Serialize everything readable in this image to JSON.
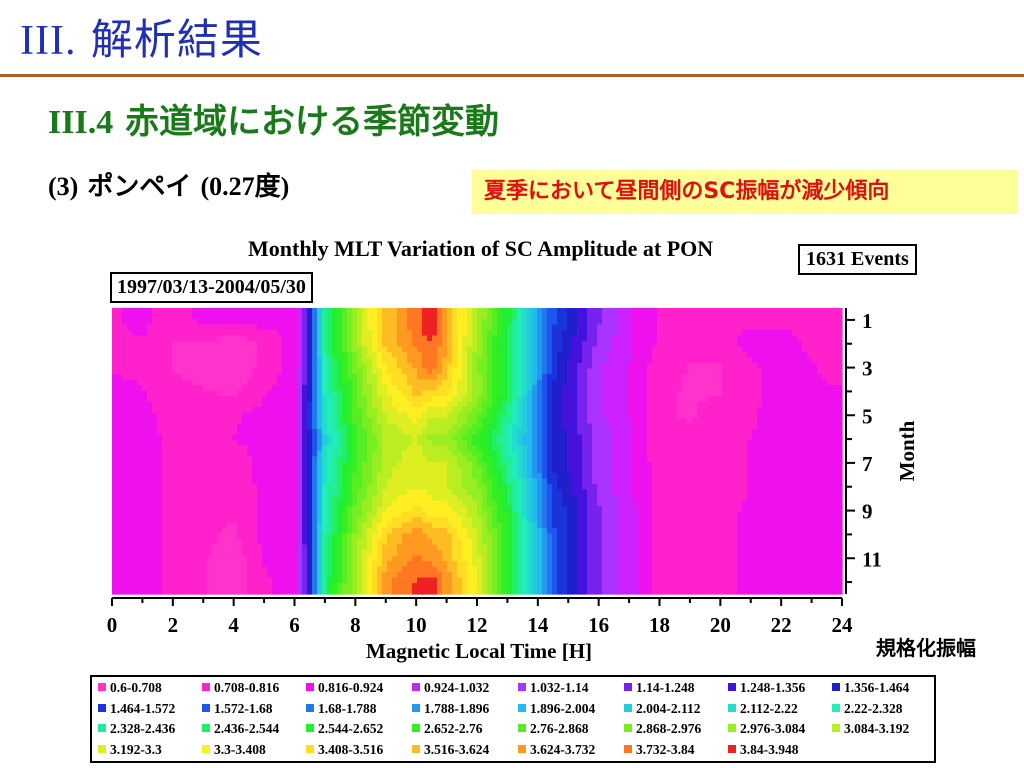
{
  "slide": {
    "title_num": "III.",
    "title_text": "解析結果",
    "section_num": "III.4",
    "section_text": "赤道域における季節変動",
    "subsection_num": "(3)",
    "subsection_name": "ポンペイ",
    "subsection_lat": "(0.27度)",
    "note": "夏季において昼間側のSC振幅が減少傾向",
    "normalized_label": "規格化振幅"
  },
  "chart_data": {
    "type": "heatmap",
    "title": "Monthly MLT Variation of SC Amplitude at PON",
    "period": "1997/03/13-2004/05/30",
    "events": "1631 Events",
    "xlabel": "Magnetic Local Time [H]",
    "ylabel": "Month",
    "xlim": [
      0,
      24
    ],
    "ylim": [
      12,
      1
    ],
    "x_ticks": [
      0,
      2,
      4,
      6,
      8,
      10,
      12,
      14,
      16,
      18,
      20,
      22,
      24
    ],
    "y_ticks": [
      1,
      3,
      5,
      7,
      9,
      11
    ],
    "levels": [
      {
        "label": "0.6-0.708",
        "color": "#ff33cc"
      },
      {
        "label": "0.708-0.816",
        "color": "#ff22cc"
      },
      {
        "label": "0.816-0.924",
        "color": "#ee11ee"
      },
      {
        "label": "0.924-1.032",
        "color": "#cc22ff"
      },
      {
        "label": "1.032-1.14",
        "color": "#aa33ff"
      },
      {
        "label": "1.14-1.248",
        "color": "#7722ee"
      },
      {
        "label": "1.248-1.356",
        "color": "#4411dd"
      },
      {
        "label": "1.356-1.464",
        "color": "#1f1fcc"
      },
      {
        "label": "1.464-1.572",
        "color": "#1a33dd"
      },
      {
        "label": "1.572-1.68",
        "color": "#1e55ee"
      },
      {
        "label": "1.68-1.788",
        "color": "#2277ee"
      },
      {
        "label": "1.788-1.896",
        "color": "#2299ee"
      },
      {
        "label": "1.896-2.004",
        "color": "#22bbee"
      },
      {
        "label": "2.004-2.112",
        "color": "#22ccdd"
      },
      {
        "label": "2.112-2.22",
        "color": "#22ddcc"
      },
      {
        "label": "2.22-2.328",
        "color": "#22eebb"
      },
      {
        "label": "2.328-2.436",
        "color": "#22ee99"
      },
      {
        "label": "2.436-2.544",
        "color": "#22ee66"
      },
      {
        "label": "2.544-2.652",
        "color": "#22ee33"
      },
      {
        "label": "2.652-2.76",
        "color": "#33ee22"
      },
      {
        "label": "2.76-2.868",
        "color": "#55ee22"
      },
      {
        "label": "2.868-2.976",
        "color": "#77ee22"
      },
      {
        "label": "2.976-3.084",
        "color": "#99ee22"
      },
      {
        "label": "3.084-3.192",
        "color": "#bbee22"
      },
      {
        "label": "3.192-3.3",
        "color": "#ddee22"
      },
      {
        "label": "3.3-3.408",
        "color": "#ffee22"
      },
      {
        "label": "3.408-3.516",
        "color": "#ffdd22"
      },
      {
        "label": "3.516-3.624",
        "color": "#ffbb22"
      },
      {
        "label": "3.624-3.732",
        "color": "#ff9922"
      },
      {
        "label": "3.732-3.84",
        "color": "#ff7722"
      },
      {
        "label": "3.84-3.948",
        "color": "#ee2222"
      }
    ],
    "mlt": [
      0,
      1,
      2,
      3,
      4,
      5,
      6,
      6.5,
      7,
      8,
      9,
      10,
      10.5,
      11,
      12,
      13,
      14,
      14.5,
      15,
      16,
      17,
      18,
      19,
      20,
      21,
      22,
      23,
      24
    ],
    "months": [
      1,
      2,
      3,
      4,
      5,
      6,
      7,
      8,
      9,
      10,
      11,
      12
    ],
    "values": [
      [
        0.8,
        0.85,
        0.75,
        0.85,
        0.9,
        0.85,
        0.85,
        1.4,
        2.4,
        3.1,
        3.55,
        3.8,
        3.95,
        3.6,
        3.1,
        2.6,
        1.9,
        1.6,
        1.45,
        1.15,
        0.95,
        0.8,
        0.8,
        0.8,
        0.8,
        0.8,
        0.8,
        0.8
      ],
      [
        0.8,
        0.8,
        0.7,
        0.7,
        0.6,
        0.75,
        0.85,
        1.4,
        2.4,
        3.05,
        3.55,
        3.75,
        3.85,
        3.65,
        3.05,
        2.5,
        1.85,
        1.55,
        1.4,
        1.1,
        0.95,
        0.8,
        0.75,
        0.78,
        0.85,
        0.85,
        0.8,
        0.8
      ],
      [
        0.8,
        0.8,
        0.7,
        0.65,
        0.6,
        0.75,
        0.85,
        1.4,
        2.3,
        2.9,
        3.4,
        3.65,
        3.8,
        3.55,
        3.0,
        2.55,
        1.85,
        1.5,
        1.35,
        1.05,
        0.92,
        0.75,
        0.7,
        0.7,
        0.8,
        0.85,
        0.82,
        0.8
      ],
      [
        0.85,
        0.82,
        0.75,
        0.72,
        0.68,
        0.8,
        0.9,
        1.45,
        2.25,
        2.85,
        3.3,
        3.55,
        3.5,
        3.45,
        3.05,
        2.55,
        1.8,
        1.45,
        1.3,
        1.05,
        0.92,
        0.72,
        0.7,
        0.7,
        0.8,
        0.85,
        0.82,
        0.82
      ],
      [
        0.88,
        0.85,
        0.78,
        0.78,
        0.8,
        0.85,
        0.92,
        1.5,
        2.2,
        2.8,
        3.2,
        3.35,
        3.2,
        3.2,
        2.9,
        2.4,
        1.75,
        1.45,
        1.3,
        1.05,
        0.92,
        0.72,
        0.7,
        0.75,
        0.8,
        0.86,
        0.84,
        0.84
      ],
      [
        0.86,
        0.84,
        0.8,
        0.8,
        0.82,
        0.86,
        0.92,
        1.45,
        2.1,
        2.7,
        3.1,
        3.2,
        3.05,
        3.05,
        2.7,
        2.3,
        1.75,
        1.45,
        1.35,
        1.1,
        0.95,
        0.75,
        0.72,
        0.75,
        0.82,
        0.86,
        0.85,
        0.85
      ],
      [
        0.86,
        0.84,
        0.8,
        0.78,
        0.74,
        0.86,
        0.92,
        1.45,
        2.2,
        2.75,
        3.15,
        3.25,
        3.2,
        3.2,
        2.9,
        2.4,
        1.8,
        1.45,
        1.35,
        1.1,
        0.95,
        0.75,
        0.72,
        0.75,
        0.82,
        0.86,
        0.85,
        0.85
      ],
      [
        0.86,
        0.84,
        0.8,
        0.76,
        0.72,
        0.86,
        0.9,
        1.45,
        2.25,
        2.8,
        3.2,
        3.3,
        3.25,
        3.2,
        3.0,
        2.5,
        1.85,
        1.5,
        1.4,
        1.1,
        0.95,
        0.76,
        0.74,
        0.75,
        0.82,
        0.86,
        0.85,
        0.85
      ],
      [
        0.86,
        0.84,
        0.8,
        0.76,
        0.72,
        0.86,
        0.9,
        1.45,
        2.25,
        2.9,
        3.3,
        3.45,
        3.35,
        3.35,
        3.1,
        2.6,
        1.9,
        1.55,
        1.45,
        1.15,
        0.96,
        0.78,
        0.75,
        0.78,
        0.84,
        0.86,
        0.85,
        0.85
      ],
      [
        0.86,
        0.84,
        0.8,
        0.74,
        0.68,
        0.86,
        0.9,
        1.45,
        2.35,
        3.0,
        3.5,
        3.7,
        3.6,
        3.55,
        3.2,
        2.65,
        1.95,
        1.6,
        1.45,
        1.15,
        0.96,
        0.78,
        0.75,
        0.78,
        0.84,
        0.86,
        0.85,
        0.85
      ],
      [
        0.86,
        0.84,
        0.8,
        0.72,
        0.64,
        0.82,
        0.88,
        1.4,
        2.4,
        3.05,
        3.6,
        3.75,
        3.7,
        3.6,
        3.25,
        2.65,
        1.95,
        1.6,
        1.45,
        1.15,
        0.96,
        0.76,
        0.74,
        0.78,
        0.84,
        0.86,
        0.85,
        0.85
      ],
      [
        0.86,
        0.84,
        0.8,
        0.72,
        0.62,
        0.8,
        0.88,
        1.4,
        2.45,
        3.1,
        3.7,
        3.85,
        3.9,
        3.7,
        3.3,
        2.65,
        1.95,
        1.6,
        1.45,
        1.15,
        0.96,
        0.76,
        0.74,
        0.78,
        0.84,
        0.86,
        0.85,
        0.85
      ]
    ]
  }
}
